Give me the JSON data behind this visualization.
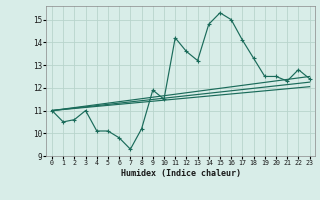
{
  "title": "",
  "xlabel": "Humidex (Indice chaleur)",
  "bg_color": "#d8ede8",
  "grid_color": "#b8d4cc",
  "line_color": "#1a6b5a",
  "xlim": [
    -0.5,
    23.5
  ],
  "ylim": [
    9,
    15.6
  ],
  "xticks": [
    0,
    1,
    2,
    3,
    4,
    5,
    6,
    7,
    8,
    9,
    10,
    11,
    12,
    13,
    14,
    15,
    16,
    17,
    18,
    19,
    20,
    21,
    22,
    23
  ],
  "yticks": [
    9,
    10,
    11,
    12,
    13,
    14,
    15
  ],
  "main_x": [
    0,
    1,
    2,
    3,
    4,
    5,
    6,
    7,
    8,
    9,
    10,
    11,
    12,
    13,
    14,
    15,
    16,
    17,
    18,
    19,
    20,
    21,
    22,
    23
  ],
  "main_y": [
    11.0,
    10.5,
    10.6,
    11.0,
    10.1,
    10.1,
    9.8,
    9.3,
    10.2,
    11.9,
    11.5,
    14.2,
    13.6,
    13.2,
    14.8,
    15.3,
    15.0,
    14.1,
    13.3,
    12.5,
    12.5,
    12.3,
    12.8,
    12.4
  ],
  "trend_starts": [
    11.0,
    11.0,
    11.0
  ],
  "trend_ends": [
    12.5,
    12.25,
    12.05
  ]
}
